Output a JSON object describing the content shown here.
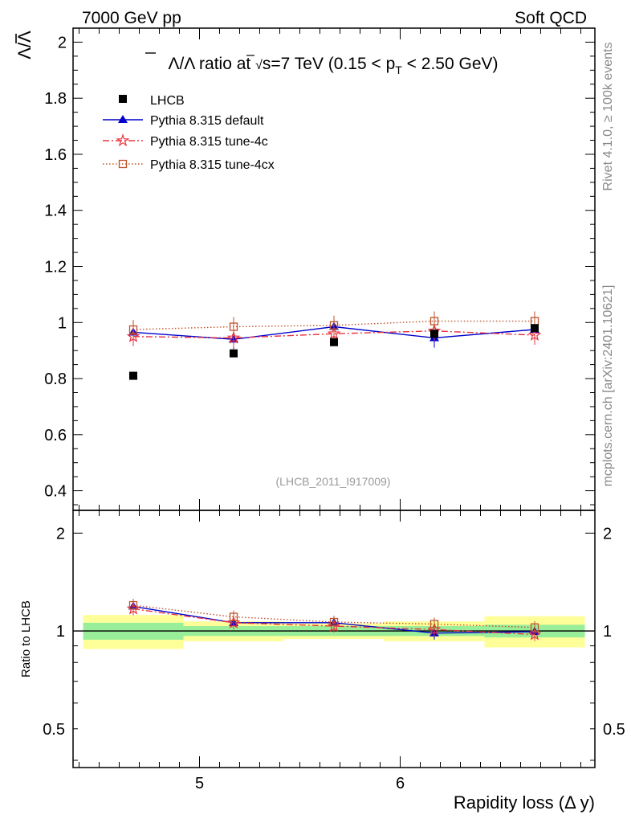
{
  "header": {
    "left": "7000 GeV pp",
    "right": "Soft QCD"
  },
  "side_labels": {
    "rivet": "Rivet 4.1.0, ≥ 100k events",
    "mcplots": "mcplots.cern.ch [arXiv:2401.10621]"
  },
  "chart_data": [
    {
      "type": "scatter",
      "title": "Λ̄/Λ ratio at √s=7 TeV (0.15 < pT < 2.50 GeV)",
      "title_parts": {
        "lead": "Λ/Λ ratio at ",
        "sqrt": "√",
        "s": "s",
        "energy": "=7 TeV (0.15 < p",
        "sub": "T",
        "tail": " < 2.50 GeV)"
      },
      "ylabel": "Λ/Λ",
      "analysis_id": "(LHCB_2011_I917009)",
      "xlim": [
        4.37,
        6.97
      ],
      "ylim": [
        0.33,
        2.05
      ],
      "yticks": [
        "0.4",
        "0.6",
        "0.8",
        "1",
        "1.2",
        "1.4",
        "1.6",
        "1.8",
        "2"
      ],
      "x": [
        4.67,
        5.17,
        5.67,
        6.17,
        6.67
      ],
      "series": [
        {
          "name": "LHCB",
          "values": [
            0.81,
            0.89,
            0.93,
            0.96,
            0.98
          ],
          "color": "#000000",
          "marker": "square",
          "line": "none"
        },
        {
          "name": "Pythia 8.315 default",
          "values": [
            0.965,
            0.94,
            0.985,
            0.945,
            0.975
          ],
          "color": "#0000cc",
          "marker": "triangle",
          "line": "solid"
        },
        {
          "name": "Pythia 8.315 tune-4c",
          "values": [
            0.95,
            0.945,
            0.96,
            0.97,
            0.955
          ],
          "color": "#e8333f",
          "marker": "star",
          "line": "dashdot"
        },
        {
          "name": "Pythia 8.315 tune-4cx",
          "values": [
            0.975,
            0.985,
            0.99,
            1.005,
            1.005
          ],
          "color": "#c0522a",
          "marker": "open-square",
          "line": "dotted"
        }
      ]
    },
    {
      "type": "scatter",
      "ylabel": "Ratio to LHCB",
      "xlabel": "Rapidity loss (Δ y)",
      "scale": "log",
      "xlim": [
        4.37,
        6.97
      ],
      "ylim": [
        0.38,
        2.35
      ],
      "yticks": [
        "0.5",
        "1",
        "2"
      ],
      "xticks": [
        "5",
        "6"
      ],
      "x": [
        4.67,
        5.17,
        5.67,
        6.17,
        6.67
      ],
      "bands": {
        "green_halfwidth": [
          0.06,
          0.035,
          0.035,
          0.035,
          0.045
        ],
        "yellow_halfwidth": [
          0.12,
          0.07,
          0.055,
          0.07,
          0.11
        ]
      },
      "series": [
        {
          "name": "Pythia 8.315 default",
          "values": [
            1.19,
            1.06,
            1.06,
            0.985,
            0.995
          ],
          "color": "#0000cc"
        },
        {
          "name": "Pythia 8.315 tune-4c",
          "values": [
            1.17,
            1.06,
            1.035,
            1.01,
            0.975
          ],
          "color": "#e8333f"
        },
        {
          "name": "Pythia 8.315 tune-4cx",
          "values": [
            1.2,
            1.105,
            1.065,
            1.05,
            1.025
          ],
          "color": "#c0522a"
        }
      ]
    }
  ]
}
